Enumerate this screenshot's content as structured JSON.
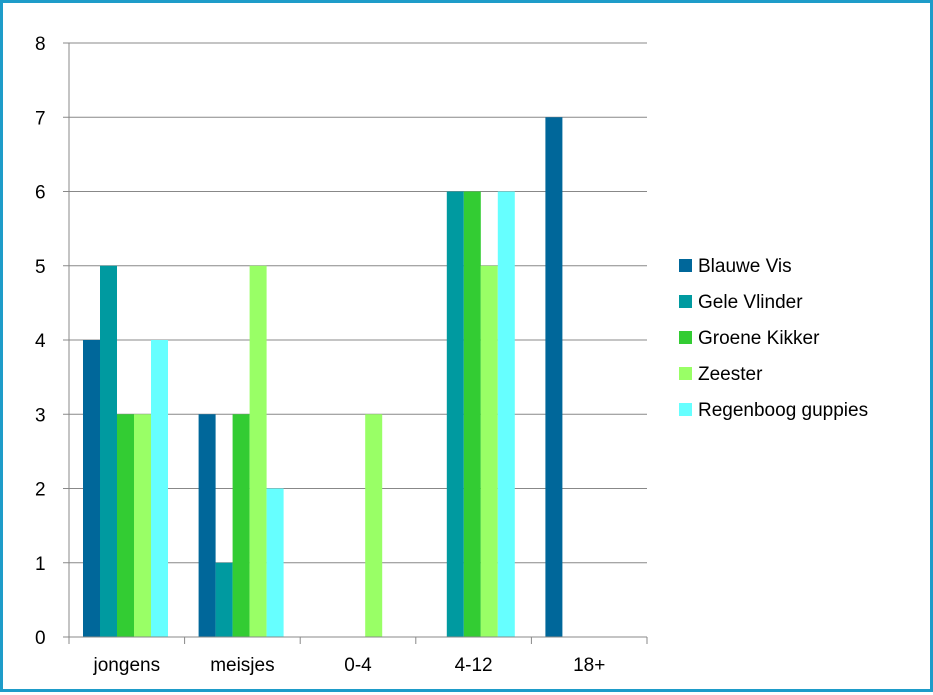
{
  "chart_data": {
    "type": "bar",
    "title": "",
    "xlabel": "",
    "ylabel": "",
    "ylim": [
      0,
      8
    ],
    "yticks": [
      "0",
      "1",
      "2",
      "3",
      "4",
      "5",
      "6",
      "7",
      "8"
    ],
    "grid": true,
    "legend_position": "right",
    "categories": [
      "jongens",
      "meisjes",
      "0-4",
      "4-12",
      "18+"
    ],
    "series": [
      {
        "name": "Blauwe Vis",
        "color": "#00679a",
        "values": [
          4,
          3,
          null,
          null,
          7
        ]
      },
      {
        "name": "Gele Vlinder",
        "color": "#009aa0",
        "values": [
          5,
          1,
          null,
          6,
          null
        ]
      },
      {
        "name": "Groene Kikker",
        "color": "#33cc33",
        "values": [
          3,
          3,
          null,
          6,
          null
        ]
      },
      {
        "name": "Zeester",
        "color": "#99ff66",
        "values": [
          3,
          5,
          3,
          5,
          null
        ]
      },
      {
        "name": "Regenboog guppies",
        "color": "#66ffff",
        "values": [
          4,
          2,
          null,
          6,
          null
        ]
      }
    ]
  }
}
